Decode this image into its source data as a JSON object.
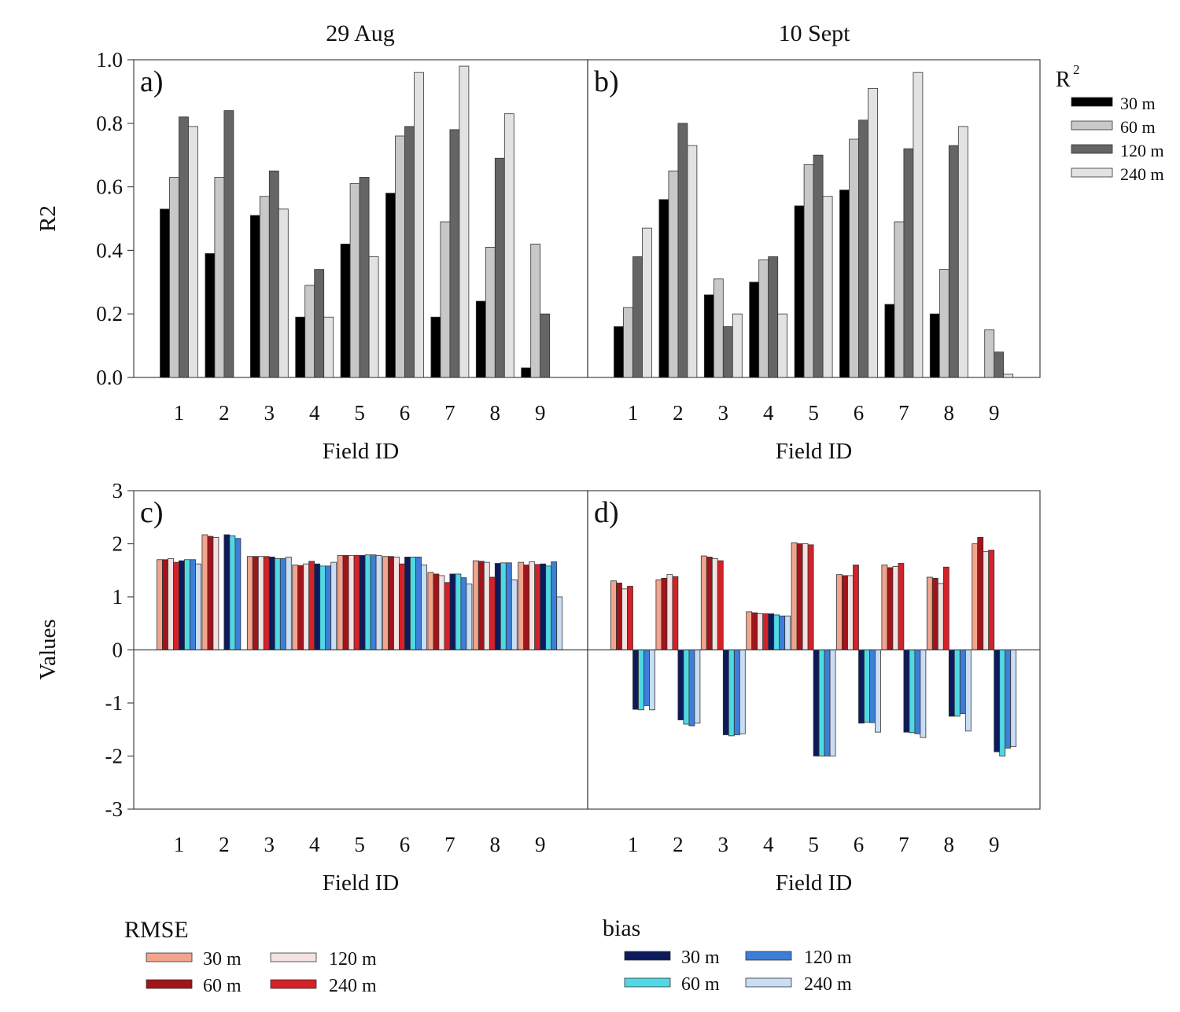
{
  "chart_data": [
    {
      "panel": "a)",
      "type": "bar",
      "column_title": "29 Aug",
      "ylabel": "R2",
      "xlabel": "Field ID",
      "ylim": [
        0,
        1
      ],
      "yticks": [
        "0.0",
        "0.2",
        "0.4",
        "0.6",
        "0.8",
        "1.0"
      ],
      "categories": [
        "1",
        "2",
        "3",
        "4",
        "5",
        "6",
        "7",
        "8",
        "9"
      ],
      "series": [
        {
          "name": "30 m",
          "color": "#000000",
          "values": [
            0.53,
            0.39,
            0.51,
            0.19,
            0.42,
            0.58,
            0.19,
            0.24,
            0.03
          ]
        },
        {
          "name": "60 m",
          "color": "#c8c8c8",
          "values": [
            0.63,
            0.63,
            0.57,
            0.29,
            0.61,
            0.76,
            0.49,
            0.41,
            0.42
          ]
        },
        {
          "name": "120 m",
          "color": "#656565",
          "values": [
            0.82,
            0.84,
            0.65,
            0.34,
            0.63,
            0.79,
            0.78,
            0.69,
            0.2
          ]
        },
        {
          "name": "240 m",
          "color": "#e2e2e2",
          "values": [
            0.79,
            0.0,
            0.53,
            0.19,
            0.38,
            0.96,
            0.98,
            0.83,
            0.0
          ]
        }
      ]
    },
    {
      "panel": "b)",
      "type": "bar",
      "column_title": "10 Sept",
      "xlabel": "Field ID",
      "ylim": [
        0,
        1
      ],
      "categories": [
        "1",
        "2",
        "3",
        "4",
        "5",
        "6",
        "7",
        "8",
        "9"
      ],
      "series": [
        {
          "name": "30 m",
          "color": "#000000",
          "values": [
            0.16,
            0.56,
            0.26,
            0.3,
            0.54,
            0.59,
            0.23,
            0.2,
            0.0
          ]
        },
        {
          "name": "60 m",
          "color": "#c8c8c8",
          "values": [
            0.22,
            0.65,
            0.31,
            0.37,
            0.67,
            0.75,
            0.49,
            0.34,
            0.15
          ]
        },
        {
          "name": "120 m",
          "color": "#656565",
          "values": [
            0.38,
            0.8,
            0.16,
            0.38,
            0.7,
            0.81,
            0.72,
            0.73,
            0.08
          ]
        },
        {
          "name": "240 m",
          "color": "#e2e2e2",
          "values": [
            0.47,
            0.73,
            0.2,
            0.2,
            0.57,
            0.91,
            0.96,
            0.79,
            0.01
          ]
        }
      ]
    },
    {
      "panel": "c)",
      "type": "bar",
      "ylabel": "Values",
      "xlabel": "Field ID",
      "ylim": [
        -3,
        3
      ],
      "yticks": [
        "-3",
        "-2",
        "-1",
        "0",
        "1",
        "2",
        "3"
      ],
      "categories": [
        "1",
        "2",
        "3",
        "4",
        "5",
        "6",
        "7",
        "8",
        "9"
      ],
      "series": [
        {
          "name": "RMSE 30 m",
          "color": "#f2a48d",
          "values": [
            1.7,
            2.17,
            1.76,
            1.6,
            1.78,
            1.76,
            1.46,
            1.68,
            1.65
          ]
        },
        {
          "name": "RMSE 60 m",
          "color": "#a0141a",
          "values": [
            1.7,
            2.14,
            1.76,
            1.59,
            1.78,
            1.76,
            1.43,
            1.67,
            1.6
          ]
        },
        {
          "name": "RMSE 120 m",
          "color": "#f3e2e2",
          "values": [
            1.72,
            2.12,
            1.76,
            1.62,
            1.78,
            1.75,
            1.4,
            1.65,
            1.66
          ]
        },
        {
          "name": "RMSE 240 m",
          "color": "#d42228",
          "values": [
            1.65,
            0.0,
            1.76,
            1.67,
            1.78,
            1.62,
            1.27,
            1.37,
            1.61
          ]
        },
        {
          "name": "bias 30 m",
          "color": "#0d1a5c",
          "values": [
            1.68,
            2.17,
            1.75,
            1.62,
            1.78,
            1.75,
            1.43,
            1.63,
            1.62
          ]
        },
        {
          "name": "bias 60 m",
          "color": "#4fd9e5",
          "values": [
            1.7,
            2.15,
            1.72,
            1.58,
            1.79,
            1.75,
            1.43,
            1.64,
            1.58
          ]
        },
        {
          "name": "bias 120 m",
          "color": "#3d7fd8",
          "values": [
            1.7,
            2.1,
            1.72,
            1.58,
            1.79,
            1.75,
            1.36,
            1.64,
            1.66
          ]
        },
        {
          "name": "bias 240 m",
          "color": "#c9ddf4",
          "values": [
            1.62,
            0.0,
            1.75,
            1.65,
            1.78,
            1.6,
            1.24,
            1.32,
            1.0
          ]
        }
      ]
    },
    {
      "panel": "d)",
      "type": "bar",
      "xlabel": "Field ID",
      "ylim": [
        -3,
        3
      ],
      "categories": [
        "1",
        "2",
        "3",
        "4",
        "5",
        "6",
        "7",
        "8",
        "9"
      ],
      "series": [
        {
          "name": "RMSE 30 m",
          "color": "#f2a48d",
          "values": [
            1.3,
            1.32,
            1.77,
            0.72,
            2.02,
            1.42,
            1.6,
            1.37,
            2.0
          ]
        },
        {
          "name": "RMSE 60 m",
          "color": "#a0141a",
          "values": [
            1.26,
            1.35,
            1.75,
            0.7,
            2.0,
            1.4,
            1.55,
            1.35,
            2.12
          ]
        },
        {
          "name": "RMSE 120 m",
          "color": "#f3e2e2",
          "values": [
            1.15,
            1.42,
            1.72,
            0.68,
            2.0,
            1.4,
            1.57,
            1.25,
            1.85
          ]
        },
        {
          "name": "RMSE 240 m",
          "color": "#d42228",
          "values": [
            1.2,
            1.38,
            1.68,
            0.68,
            1.98,
            1.6,
            1.63,
            1.56,
            1.88
          ]
        },
        {
          "name": "bias 30 m",
          "color": "#0d1a5c",
          "values": [
            -1.12,
            -1.32,
            -1.6,
            0.68,
            -2.0,
            -1.38,
            -1.55,
            -1.25,
            -1.92
          ]
        },
        {
          "name": "bias 60 m",
          "color": "#4fd9e5",
          "values": [
            -1.13,
            -1.4,
            -1.62,
            0.66,
            -2.0,
            -1.36,
            -1.56,
            -1.25,
            -2.0
          ]
        },
        {
          "name": "bias 120 m",
          "color": "#3d7fd8",
          "values": [
            -1.05,
            -1.43,
            -1.6,
            0.64,
            -2.0,
            -1.37,
            -1.58,
            -1.2,
            -1.85
          ]
        },
        {
          "name": "bias 240 m",
          "color": "#c9ddf4",
          "values": [
            -1.13,
            -1.38,
            -1.58,
            0.64,
            -2.0,
            -1.55,
            -1.65,
            -1.53,
            -1.82
          ]
        }
      ]
    }
  ],
  "legends": {
    "r2": {
      "title_main": "R",
      "title_sup": "2",
      "items": [
        {
          "label": "30 m",
          "color": "#000000"
        },
        {
          "label": "60 m",
          "color": "#c8c8c8"
        },
        {
          "label": "120 m",
          "color": "#656565"
        },
        {
          "label": "240 m",
          "color": "#e2e2e2"
        }
      ]
    },
    "rmse": {
      "title": "RMSE",
      "items": [
        {
          "label": "30 m",
          "color": "#f2a48d"
        },
        {
          "label": "120 m",
          "color": "#f3e2e2"
        },
        {
          "label": "60 m",
          "color": "#a0141a"
        },
        {
          "label": "240 m",
          "color": "#d42228"
        }
      ]
    },
    "bias": {
      "title": "bias",
      "items": [
        {
          "label": "30 m",
          "color": "#0d1a5c"
        },
        {
          "label": "120 m",
          "color": "#3d7fd8"
        },
        {
          "label": "60 m",
          "color": "#4fd9e5"
        },
        {
          "label": "240 m",
          "color": "#c9ddf4"
        }
      ]
    }
  }
}
